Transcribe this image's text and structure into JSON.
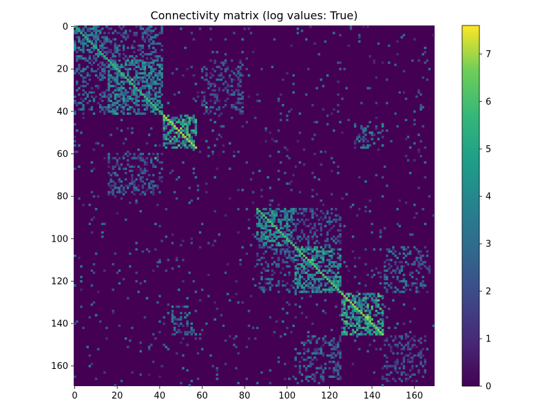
{
  "chart_data": {
    "type": "heatmap",
    "title": "Connectivity matrix (log values: True)",
    "xlabel": "",
    "ylabel": "",
    "n": 170,
    "xlim": [
      0,
      170
    ],
    "ylim": [
      170,
      0
    ],
    "x_ticks": [
      0,
      20,
      40,
      60,
      80,
      100,
      120,
      140,
      160
    ],
    "y_ticks": [
      0,
      20,
      40,
      60,
      80,
      100,
      120,
      140,
      160
    ],
    "colorbar": {
      "range": [
        0,
        7.6
      ],
      "ticks": [
        0,
        1,
        2,
        3,
        4,
        5,
        6,
        7
      ],
      "colormap": "viridis"
    },
    "background_value": 0,
    "diagonal_blocks": [
      {
        "start": 0,
        "end": 16,
        "value": 4.2
      },
      {
        "start": 16,
        "end": 42,
        "value": 4.6
      },
      {
        "start": 42,
        "end": 58,
        "value": 5.8
      },
      {
        "start": 86,
        "end": 104,
        "value": 4.8
      },
      {
        "start": 104,
        "end": 126,
        "value": 5.0
      },
      {
        "start": 126,
        "end": 146,
        "value": 5.6
      }
    ],
    "offdiagonal_blocks": [
      {
        "rows": [
          0,
          16
        ],
        "cols": [
          16,
          42
        ],
        "value": 3.2
      },
      {
        "rows": [
          16,
          42
        ],
        "cols": [
          0,
          16
        ],
        "value": 3.2
      },
      {
        "rows": [
          16,
          42
        ],
        "cols": [
          60,
          80
        ],
        "value": 2.8
      },
      {
        "rows": [
          60,
          80
        ],
        "cols": [
          16,
          42
        ],
        "value": 2.8
      },
      {
        "rows": [
          46,
          58
        ],
        "cols": [
          132,
          146
        ],
        "value": 3.6
      },
      {
        "rows": [
          132,
          146
        ],
        "cols": [
          46,
          58
        ],
        "value": 3.6
      },
      {
        "rows": [
          86,
          104
        ],
        "cols": [
          104,
          126
        ],
        "value": 3.0
      },
      {
        "rows": [
          104,
          126
        ],
        "cols": [
          86,
          104
        ],
        "value": 3.0
      },
      {
        "rows": [
          104,
          126
        ],
        "cols": [
          146,
          168
        ],
        "value": 3.2
      },
      {
        "rows": [
          146,
          168
        ],
        "cols": [
          104,
          126
        ],
        "value": 3.2
      },
      {
        "rows": [
          146,
          168
        ],
        "cols": [
          146,
          166
        ],
        "value": 2.6
      }
    ],
    "point_highlights": [
      {
        "row": 25,
        "col": 27,
        "value": 6.5
      },
      {
        "row": 48,
        "col": 50,
        "value": 6.8
      },
      {
        "row": 52,
        "col": 54,
        "value": 6.2
      },
      {
        "row": 110,
        "col": 112,
        "value": 6.6
      },
      {
        "row": 130,
        "col": 132,
        "value": 6.4
      },
      {
        "row": 137,
        "col": 138,
        "value": 7.2
      },
      {
        "row": 62,
        "col": 38,
        "value": 6.0
      },
      {
        "row": 38,
        "col": 62,
        "value": 6.0
      }
    ]
  }
}
